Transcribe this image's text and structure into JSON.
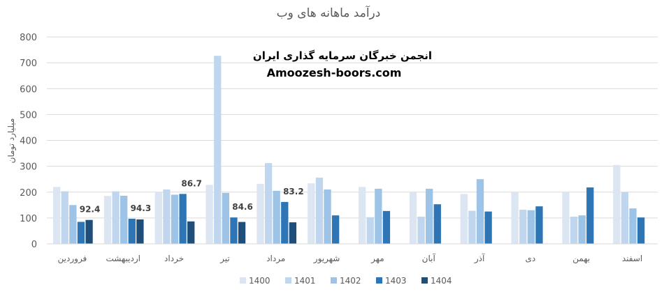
{
  "chart_data": {
    "type": "bar",
    "title": "درآمد ماهانه های وب",
    "xlabel": "",
    "ylabel": "میلیارد تومان",
    "ylim": [
      0,
      800
    ],
    "yticks": [
      0,
      100,
      200,
      300,
      400,
      500,
      600,
      700,
      800
    ],
    "grid": true,
    "legend_position": "bottom",
    "categories": [
      "فروردین",
      "اردیبهشت",
      "خرداد",
      "تیر",
      "مرداد",
      "شهریور",
      "مهر",
      "آبان",
      "آذر",
      "دی",
      "بهمن",
      "اسفند"
    ],
    "series": [
      {
        "name": "1400",
        "color": "#dce6f2",
        "values": [
          220,
          185,
          200,
          228,
          232,
          234,
          220,
          200,
          193,
          200,
          200,
          305
        ]
      },
      {
        "name": "1401",
        "color": "#c0d6ee",
        "values": [
          203,
          203,
          210,
          727,
          312,
          256,
          103,
          105,
          128,
          132,
          105,
          200
        ]
      },
      {
        "name": "1402",
        "color": "#9dc3e6",
        "values": [
          150,
          186,
          190,
          197,
          205,
          210,
          213,
          213,
          250,
          130,
          110,
          137
        ]
      },
      {
        "name": "1403",
        "color": "#2e75b6",
        "values": [
          85,
          97,
          193,
          102,
          162,
          110,
          127,
          153,
          125,
          145,
          218,
          102
        ]
      },
      {
        "name": "1404",
        "color": "#1f4e79",
        "values": [
          92.4,
          94.3,
          86.7,
          84.6,
          83.2,
          null,
          null,
          null,
          null,
          null,
          null,
          null
        ]
      }
    ],
    "data_labels": {
      "series": "1404",
      "values": [
        "92.4",
        "94.3",
        "86.7",
        "84.6",
        "83.2"
      ]
    }
  },
  "watermark": {
    "line1": "انجمن خبرگان سرمایه گذاری ایران",
    "line2": "Amoozesh-boors.com"
  }
}
